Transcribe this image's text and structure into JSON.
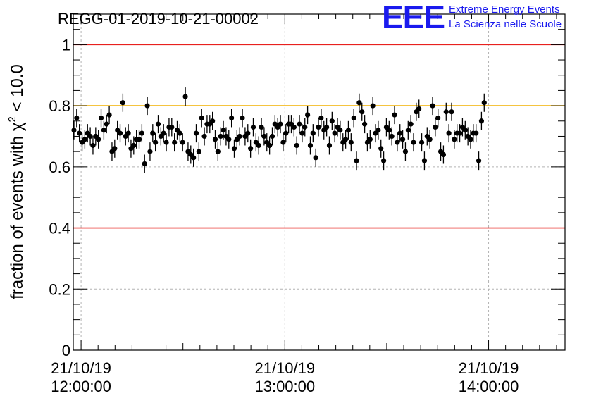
{
  "logo": {
    "mark": "EEE",
    "line1": "Extreme Energy Events",
    "line2": "La Scienza nelle Scuole",
    "color": "#1a1aee"
  },
  "chart_data": {
    "type": "scatter",
    "title": "REGG-01-2019-10-21-00002",
    "ylabel_prefix": "fraction of events with ",
    "ylabel_symbol": "χ",
    "ylabel_superscript": "2",
    "ylabel_suffix": " < 10.0",
    "ylim": [
      0,
      1.1
    ],
    "yticks": [
      {
        "value": 0,
        "label": "0"
      },
      {
        "value": 0.2,
        "label": "0.2"
      },
      {
        "value": 0.4,
        "label": "0.4"
      },
      {
        "value": 0.6,
        "label": "0.6"
      },
      {
        "value": 0.8,
        "label": "0.8"
      },
      {
        "value": 1.0,
        "label": "1"
      }
    ],
    "xlim_minutes": [
      -2.3,
      142.5
    ],
    "xticks": [
      {
        "minute": 0,
        "date": "21/10/19",
        "time": "12:00:00"
      },
      {
        "minute": 60,
        "date": "21/10/19",
        "time": "13:00:00"
      },
      {
        "minute": 120,
        "date": "21/10/19",
        "time": "14:00:00"
      }
    ],
    "reference_lines": [
      {
        "value": 1.0,
        "color": "#e8201e"
      },
      {
        "value": 0.4,
        "color": "#e8201e"
      },
      {
        "value": 0.8,
        "color": "#f2b000"
      }
    ],
    "grid": true,
    "error": 0.03,
    "series": [
      {
        "color": "#000000",
        "x_start_minute": -2.1,
        "x_step_minutes": 0.8,
        "values": [
          0.72,
          0.76,
          0.71,
          0.68,
          0.69,
          0.71,
          0.7,
          0.67,
          0.7,
          0.69,
          0.76,
          0.72,
          0.74,
          0.77,
          0.65,
          0.66,
          0.72,
          0.71,
          0.81,
          0.7,
          0.71,
          0.66,
          0.67,
          0.69,
          0.69,
          0.71,
          0.61,
          0.8,
          0.65,
          0.71,
          0.68,
          0.74,
          0.7,
          0.71,
          0.68,
          0.73,
          0.73,
          0.68,
          0.72,
          0.71,
          0.68,
          0.83,
          0.65,
          0.64,
          0.63,
          0.71,
          0.65,
          0.76,
          0.7,
          0.74,
          0.74,
          0.75,
          0.69,
          0.65,
          0.7,
          0.72,
          0.7,
          0.69,
          0.76,
          0.66,
          0.69,
          0.7,
          0.76,
          0.7,
          0.71,
          0.66,
          0.73,
          0.68,
          0.67,
          0.73,
          0.7,
          0.68,
          0.67,
          0.7,
          0.74,
          0.73,
          0.74,
          0.68,
          0.71,
          0.74,
          0.74,
          0.73,
          0.67,
          0.74,
          0.71,
          0.73,
          0.77,
          0.67,
          0.71,
          0.63,
          0.73,
          0.76,
          0.72,
          0.73,
          0.67,
          0.75,
          0.71,
          0.73,
          0.72,
          0.68,
          0.69,
          0.72,
          0.68,
          0.76,
          0.62,
          0.81,
          0.78,
          0.74,
          0.68,
          0.69,
          0.8,
          0.71,
          0.72,
          0.66,
          0.62,
          0.73,
          0.72,
          0.7,
          0.77,
          0.68,
          0.71,
          0.69,
          0.65,
          0.72,
          0.74,
          0.68,
          0.78,
          0.79,
          0.68,
          0.62,
          0.7,
          0.69,
          0.8,
          0.73,
          0.76,
          0.65,
          0.64,
          0.78,
          0.71,
          0.78,
          0.69,
          0.71,
          0.71,
          0.73,
          0.72,
          0.7,
          0.69,
          0.71,
          0.71,
          0.62,
          0.75,
          0.81
        ]
      }
    ]
  }
}
